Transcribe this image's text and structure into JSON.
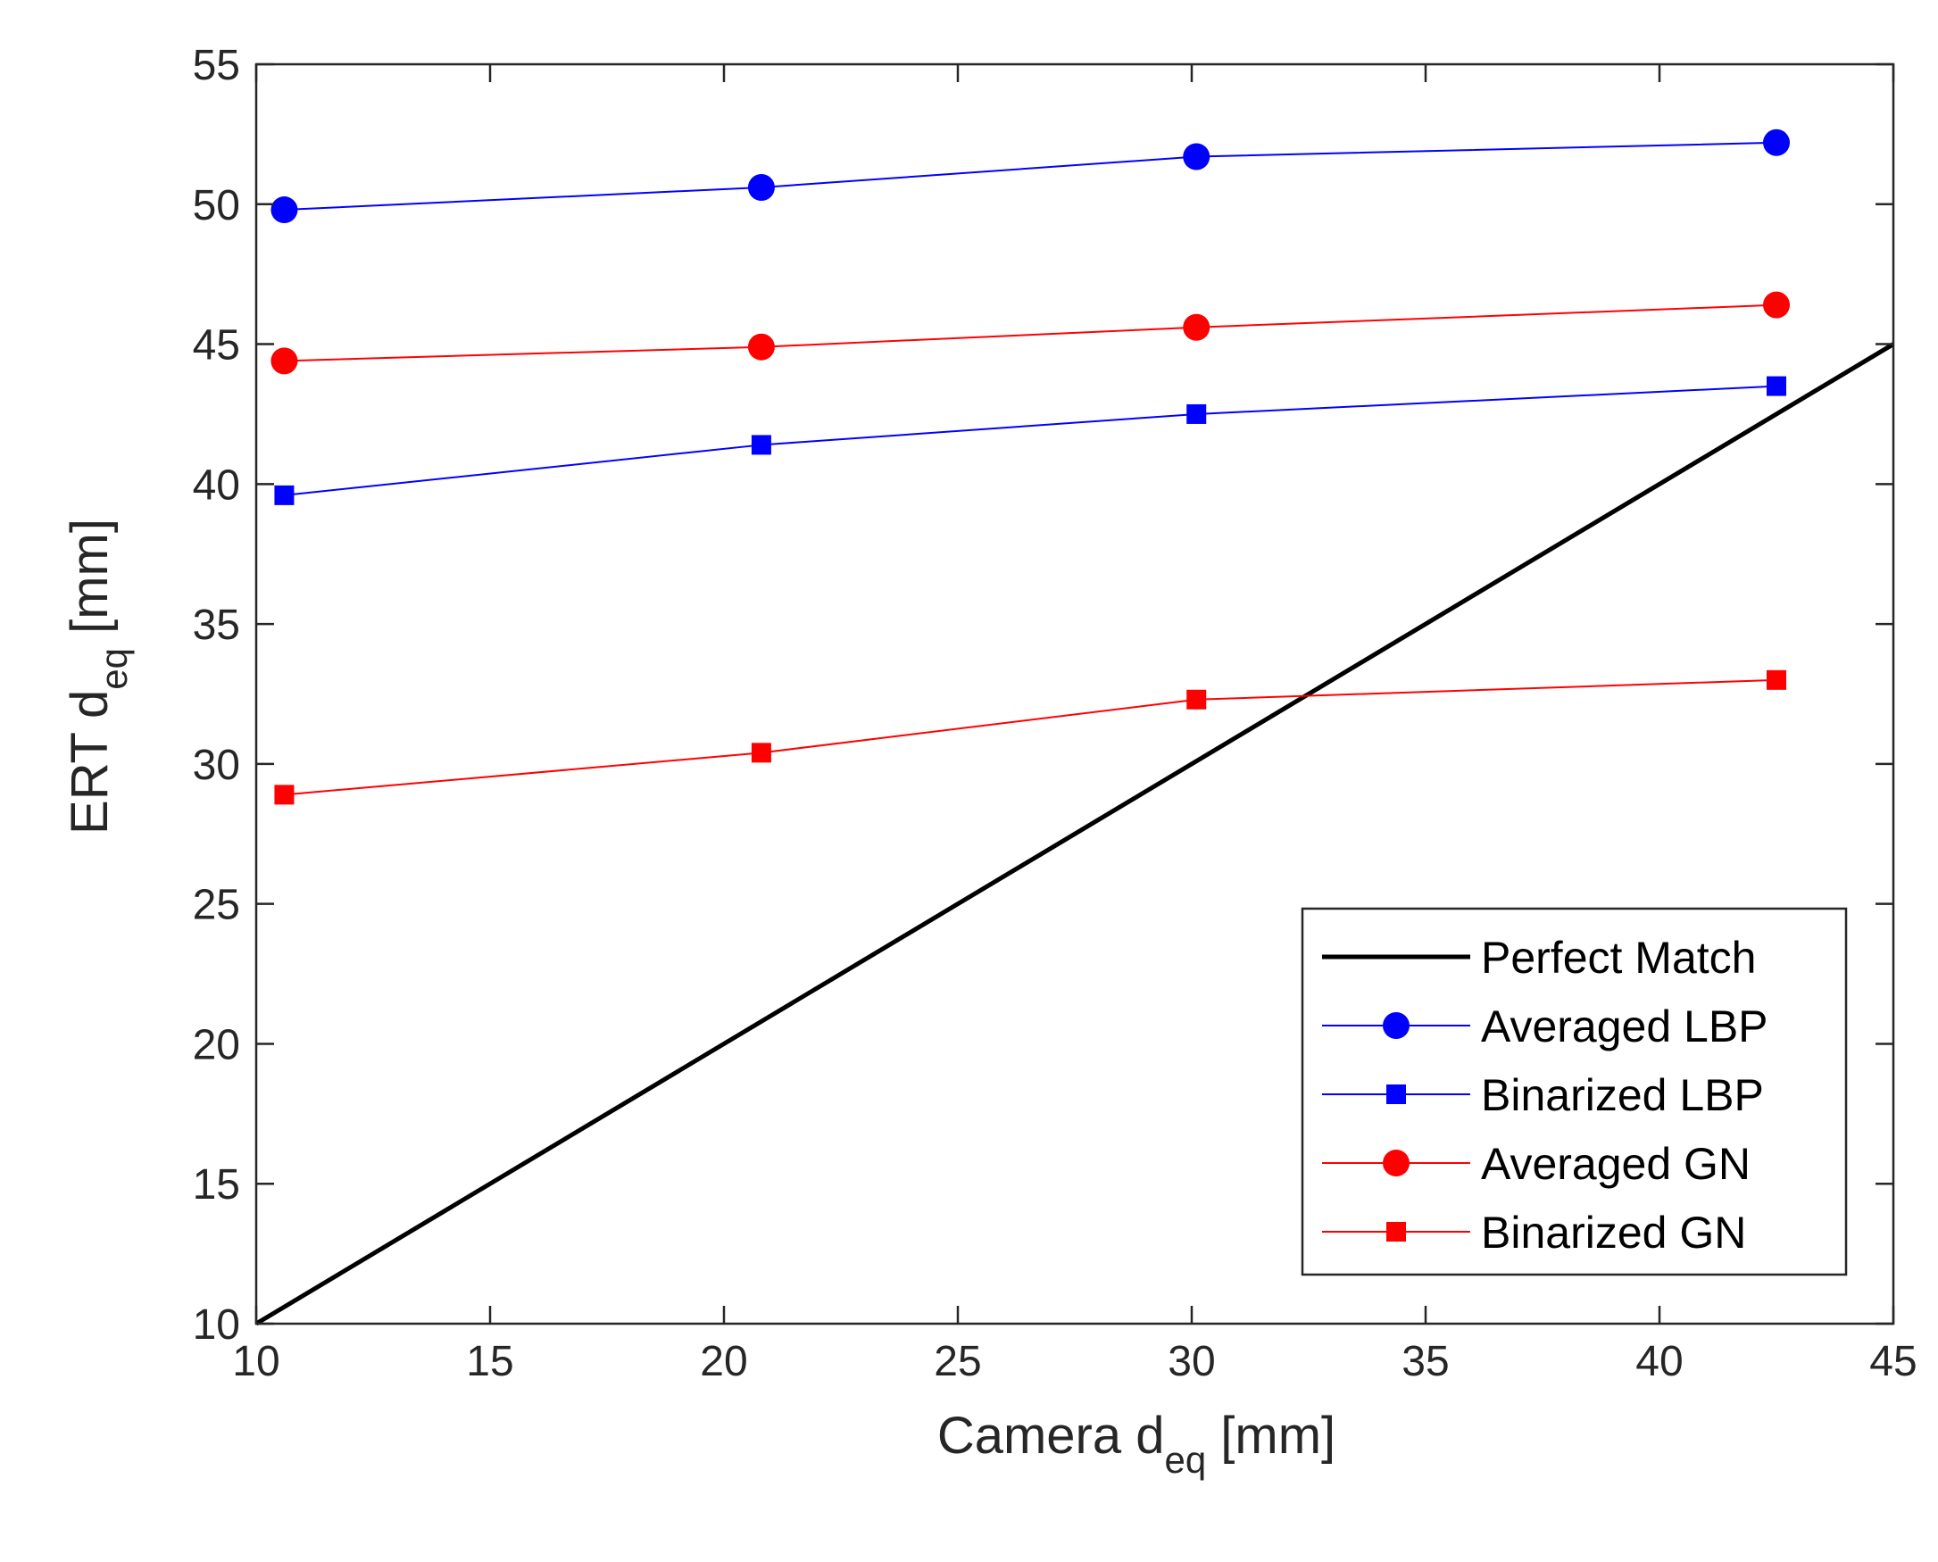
{
  "chart_data": {
    "type": "line",
    "title": "",
    "xlabel": {
      "main": "Camera d",
      "sub": "eq",
      "unit": " [mm]"
    },
    "ylabel": {
      "main": "ERT d",
      "sub": "eq",
      "unit": " [mm]"
    },
    "xlim": [
      10,
      45
    ],
    "ylim": [
      10,
      55
    ],
    "xticks": [
      10,
      15,
      20,
      25,
      30,
      35,
      40,
      45
    ],
    "yticks": [
      10,
      15,
      20,
      25,
      30,
      35,
      40,
      45,
      50,
      55
    ],
    "grid": false,
    "legend_position": "bottom-right",
    "series": [
      {
        "name": "Perfect Match",
        "color": "#000000",
        "marker": "none",
        "x": [
          10,
          45
        ],
        "y": [
          10,
          45
        ]
      },
      {
        "name": "Averaged LBP",
        "color": "#0000ff",
        "marker": "circle",
        "x": [
          10.6,
          20.8,
          30.1,
          42.5
        ],
        "y": [
          49.8,
          50.6,
          51.7,
          52.2
        ]
      },
      {
        "name": "Binarized LBP",
        "color": "#0000ff",
        "marker": "square",
        "x": [
          10.6,
          20.8,
          30.1,
          42.5
        ],
        "y": [
          39.6,
          41.4,
          42.5,
          43.5
        ]
      },
      {
        "name": "Averaged GN",
        "color": "#ff0000",
        "marker": "circle",
        "x": [
          10.6,
          20.8,
          30.1,
          42.5
        ],
        "y": [
          44.4,
          44.9,
          45.6,
          46.4
        ]
      },
      {
        "name": "Binarized GN",
        "color": "#ff0000",
        "marker": "square",
        "x": [
          10.6,
          20.8,
          30.1,
          42.5
        ],
        "y": [
          28.9,
          30.4,
          32.3,
          33.0
        ]
      }
    ]
  }
}
